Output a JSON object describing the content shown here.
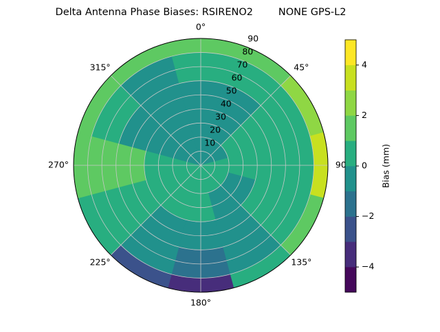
{
  "chart_data": {
    "type": "polar-contour",
    "title": "Delta Antenna Phase Biases: RSIRENO2        NONE GPS-L2",
    "rlim": [
      0,
      90
    ],
    "rticks": [
      10,
      20,
      30,
      40,
      50,
      60,
      70,
      80,
      90
    ],
    "angle_ticks": [
      {
        "value": 0,
        "label": "0°"
      },
      {
        "value": 45,
        "label": "45°"
      },
      {
        "value": 90,
        "label": "90°"
      },
      {
        "value": 135,
        "label": "135°"
      },
      {
        "value": 180,
        "label": "180°"
      },
      {
        "value": 225,
        "label": "225°"
      },
      {
        "value": 270,
        "label": "270°"
      },
      {
        "value": 315,
        "label": "315°"
      }
    ],
    "azimuths": [
      0,
      30,
      60,
      90,
      120,
      150,
      180,
      210,
      240,
      270,
      300,
      330
    ],
    "r_edges": [
      0,
      20,
      40,
      60,
      80,
      90
    ],
    "values": [
      [
        -0.5,
        -0.5,
        -0.5,
        0.5,
        0.5,
        0.5,
        0.5,
        0.5,
        0.5,
        0.5,
        -0.5,
        -0.5
      ],
      [
        -0.5,
        -0.5,
        0.5,
        0.5,
        -0.5,
        -0.5,
        0.5,
        0.5,
        0.5,
        0.5,
        -0.5,
        -0.5
      ],
      [
        -0.5,
        -0.5,
        0.5,
        0.5,
        0.5,
        -0.5,
        -0.5,
        -0.5,
        0.5,
        1.5,
        -0.5,
        -0.5
      ],
      [
        0.5,
        0.5,
        0.5,
        0.5,
        0.5,
        -0.5,
        -1.5,
        -0.5,
        0.5,
        1.5,
        0.5,
        -0.5
      ],
      [
        1.5,
        1.5,
        2.5,
        3.5,
        1.5,
        0.5,
        -3.5,
        -2.5,
        0.5,
        1.5,
        1.5,
        1.5
      ]
    ],
    "levels": [
      -5,
      -4,
      -3,
      -2,
      -1,
      0,
      1,
      2,
      3,
      4,
      5
    ],
    "colors": [
      "#45085b",
      "#472d7b",
      "#3b528b",
      "#2c728e",
      "#21918c",
      "#28ae80",
      "#5ec962",
      "#8fd744",
      "#c8e020",
      "#fde725"
    ],
    "colorbar_label": "Bias (mm)",
    "cticks": [
      {
        "value": -4,
        "label": "−4"
      },
      {
        "value": -2,
        "label": "−2"
      },
      0,
      2,
      4
    ],
    "grid": true
  }
}
